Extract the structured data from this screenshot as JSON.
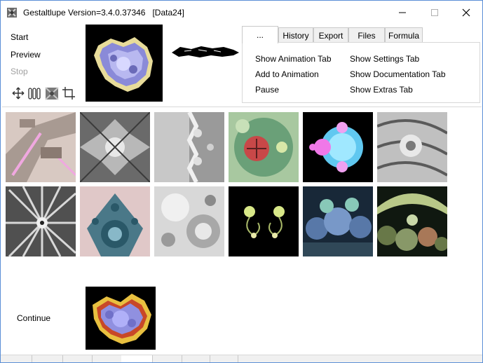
{
  "window": {
    "title": "Gestaltlupe Version=3.4.0.37346   [Data24]",
    "controls": {
      "minimize": "—",
      "maximize": "☐",
      "close": "✕"
    }
  },
  "menu": {
    "start": "Start",
    "preview": "Preview",
    "stop": "Stop",
    "continue": "Continue"
  },
  "toolbar_icons": [
    "move-icon",
    "columns-icon",
    "fractal-icon",
    "crop-icon"
  ],
  "tabs": [
    {
      "label": "...",
      "active": true
    },
    {
      "label": "History",
      "active": false
    },
    {
      "label": "Export",
      "active": false
    },
    {
      "label": "Files",
      "active": false
    },
    {
      "label": "Formula",
      "active": false
    }
  ],
  "tab_panel": {
    "show_animation_tab": "Show Animation Tab",
    "add_to_animation": "Add to Animation",
    "pause": "Pause",
    "show_settings_tab": "Show Settings Tab",
    "show_documentation_tab": "Show Documentation Tab",
    "show_extras_tab": "Show Extras Tab"
  },
  "colors": {
    "window_border": "#5b8fd6",
    "tab_bg": "#f0f0f0",
    "disabled_text": "#a0a0a0"
  }
}
